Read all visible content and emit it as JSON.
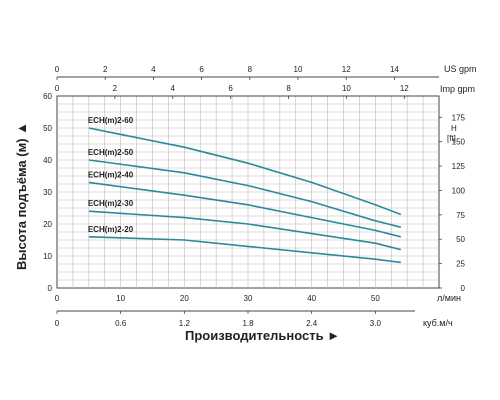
{
  "chart_data": {
    "type": "line",
    "ylabel": "Высота подъёма (м) ▲",
    "xlabel": "Производительность ►",
    "y_ticks": [
      "0",
      "10",
      "20",
      "30",
      "40",
      "50",
      "60"
    ],
    "y_range": [
      0,
      60
    ],
    "h_ft_label": "H",
    "h_ft_unit": "[ft]",
    "h_ft_ticks": [
      "0",
      "25",
      "50",
      "75",
      "100",
      "125",
      "150",
      "175"
    ],
    "x_range_lmin": [
      0,
      60
    ],
    "axis_lmin": {
      "unit": "л/мин",
      "ticks": [
        "0",
        "10",
        "20",
        "30",
        "40",
        "50"
      ]
    },
    "axis_m3h": {
      "unit": "куб.м/ч",
      "ticks": [
        "0",
        "0.6",
        "1.2",
        "1.8",
        "2.4",
        "3.0"
      ]
    },
    "axis_usgpm": {
      "unit": "US gpm",
      "ticks": [
        "0",
        "2",
        "4",
        "6",
        "8",
        "10",
        "12",
        "14"
      ]
    },
    "axis_impgpm": {
      "unit": "Imp gpm",
      "ticks": [
        "0",
        "2",
        "4",
        "6",
        "8",
        "10",
        "12"
      ]
    },
    "grid": true,
    "series": [
      {
        "name": "ECH(m)2-60",
        "x": [
          5,
          20,
          30,
          40,
          50,
          54
        ],
        "y": [
          50,
          44,
          39,
          33,
          26,
          23
        ]
      },
      {
        "name": "ECH(m)2-50",
        "x": [
          5,
          20,
          30,
          40,
          50,
          54
        ],
        "y": [
          40,
          36,
          32,
          27,
          21,
          19
        ]
      },
      {
        "name": "ECH(m)2-40",
        "x": [
          5,
          20,
          30,
          40,
          50,
          54
        ],
        "y": [
          33,
          29,
          26,
          22,
          18,
          16
        ]
      },
      {
        "name": "ECH(m)2-30",
        "x": [
          5,
          20,
          30,
          40,
          50,
          54
        ],
        "y": [
          24,
          22,
          20,
          17,
          14,
          12
        ]
      },
      {
        "name": "ECH(m)2-20",
        "x": [
          5,
          20,
          30,
          40,
          50,
          54
        ],
        "y": [
          16,
          15,
          13,
          11,
          9,
          8
        ]
      }
    ],
    "line_color": "#2a8a9a"
  }
}
